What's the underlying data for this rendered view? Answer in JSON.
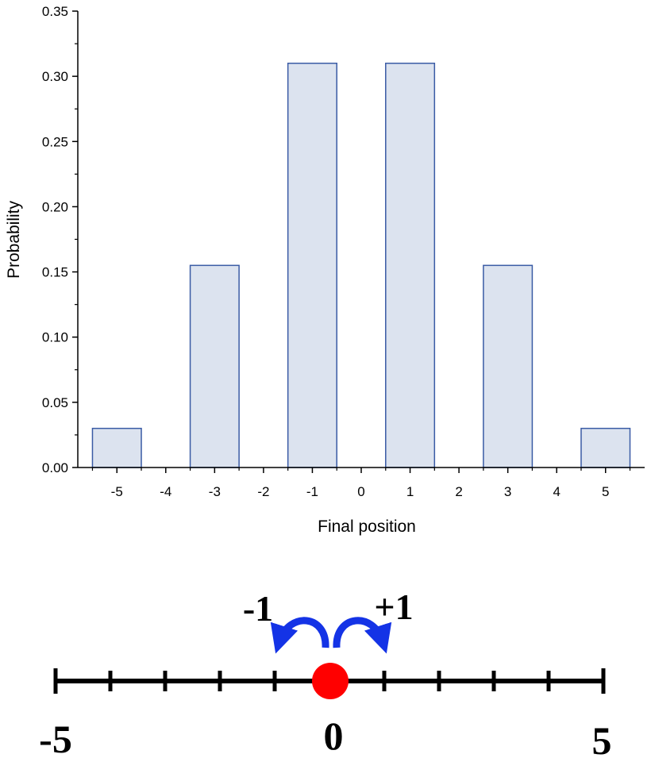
{
  "chart_data": {
    "type": "bar",
    "x": [
      -5,
      -3,
      -1,
      1,
      3,
      5
    ],
    "values": [
      0.03,
      0.155,
      0.31,
      0.31,
      0.155,
      0.03
    ],
    "x_ticks": [
      "-5",
      "-4",
      "-3",
      "-2",
      "-1",
      "0",
      "1",
      "2",
      "3",
      "4",
      "5"
    ],
    "y_ticks": [
      "0.00",
      "0.05",
      "0.10",
      "0.15",
      "0.20",
      "0.25",
      "0.30",
      "0.35"
    ],
    "xlim": [
      -5.8,
      5.8
    ],
    "ylim": [
      0,
      0.35
    ],
    "xlabel": "Final position",
    "ylabel": "Probability",
    "bar_fill": "#dce3ef",
    "bar_stroke": "#3a5ba5",
    "grid": false
  },
  "number_line": {
    "left_label": "-5",
    "center_label": "0",
    "right_label": "5",
    "step_left_label": "-1",
    "step_right_label": "+1",
    "tick_count": 11,
    "walker_color": "#ff0000",
    "arrow_color": "#1433e6"
  }
}
